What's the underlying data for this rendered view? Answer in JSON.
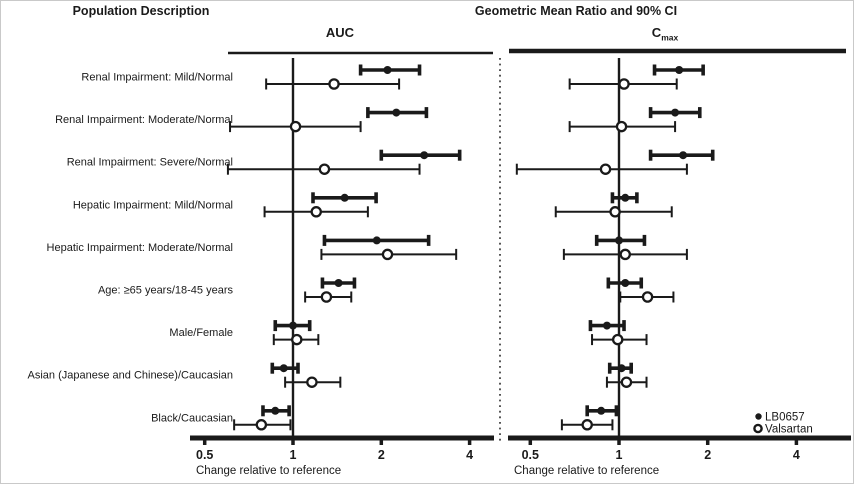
{
  "header": {
    "left_title": "Population Description",
    "right_title": "Geometric Mean Ratio and 90% CI"
  },
  "axis": {
    "scale": "log2",
    "range": [
      0.45,
      4.7
    ],
    "ticks": [
      0.5,
      1,
      2,
      4
    ],
    "tick_labels": [
      "0.5",
      "1",
      "2",
      "4"
    ],
    "xlabel": "Change relative to reference",
    "reference_value": 1
  },
  "legend": {
    "position": "bottom-right",
    "items": [
      {
        "marker": "filled-circle-icon",
        "label": "LB0657"
      },
      {
        "marker": "open-circle-icon",
        "label": "Valsartan"
      }
    ]
  },
  "colors": {
    "ink": "#1a1a1a",
    "separator": "#444444"
  },
  "chart_data": {
    "type": "forest",
    "title": "Geometric Mean Ratio and 90% CI",
    "xlabel": "Change relative to reference",
    "grid": false,
    "categories": [
      "Renal Impairment: Mild/Normal",
      "Renal Impairment: Moderate/Normal",
      "Renal Impairment: Severe/Normal",
      "Hepatic Impairment: Mild/Normal",
      "Hepatic Impairment: Moderate/Normal",
      "Age: ≥65 years/18-45 years",
      "Male/Female",
      "Asian (Japanese and Chinese)/Caucasian",
      "Black/Caucasian"
    ],
    "panels": [
      {
        "title": "AUC",
        "title_sub": "",
        "series": [
          {
            "name": "LB0657",
            "marker": "filled-circle",
            "values": [
              {
                "est": 2.1,
                "lo": 1.7,
                "hi": 2.7
              },
              {
                "est": 2.25,
                "lo": 1.8,
                "hi": 2.85
              },
              {
                "est": 2.8,
                "lo": 2.0,
                "hi": 3.7
              },
              {
                "est": 1.5,
                "lo": 1.17,
                "hi": 1.92
              },
              {
                "est": 1.93,
                "lo": 1.28,
                "hi": 2.9
              },
              {
                "est": 1.43,
                "lo": 1.26,
                "hi": 1.62
              },
              {
                "est": 1.0,
                "lo": 0.87,
                "hi": 1.14
              },
              {
                "est": 0.93,
                "lo": 0.85,
                "hi": 1.04
              },
              {
                "est": 0.87,
                "lo": 0.79,
                "hi": 0.97
              }
            ]
          },
          {
            "name": "Valsartan",
            "marker": "open-circle",
            "values": [
              {
                "est": 1.38,
                "lo": 0.81,
                "hi": 2.3
              },
              {
                "est": 1.02,
                "lo": 0.61,
                "hi": 1.7
              },
              {
                "est": 1.28,
                "lo": 0.6,
                "hi": 2.7
              },
              {
                "est": 1.2,
                "lo": 0.8,
                "hi": 1.8
              },
              {
                "est": 2.1,
                "lo": 1.25,
                "hi": 3.6
              },
              {
                "est": 1.3,
                "lo": 1.1,
                "hi": 1.58
              },
              {
                "est": 1.03,
                "lo": 0.86,
                "hi": 1.22
              },
              {
                "est": 1.16,
                "lo": 0.94,
                "hi": 1.45
              },
              {
                "est": 0.78,
                "lo": 0.63,
                "hi": 0.98
              }
            ]
          }
        ]
      },
      {
        "title": "C",
        "title_sub": "max",
        "series": [
          {
            "name": "LB0657",
            "marker": "filled-circle",
            "values": [
              {
                "est": 1.6,
                "lo": 1.32,
                "hi": 1.93
              },
              {
                "est": 1.55,
                "lo": 1.28,
                "hi": 1.88
              },
              {
                "est": 1.65,
                "lo": 1.28,
                "hi": 2.08
              },
              {
                "est": 1.05,
                "lo": 0.95,
                "hi": 1.15
              },
              {
                "est": 1.0,
                "lo": 0.84,
                "hi": 1.22
              },
              {
                "est": 1.05,
                "lo": 0.92,
                "hi": 1.19
              },
              {
                "est": 0.91,
                "lo": 0.8,
                "hi": 1.04
              },
              {
                "est": 1.02,
                "lo": 0.93,
                "hi": 1.1
              },
              {
                "est": 0.87,
                "lo": 0.78,
                "hi": 0.98
              }
            ]
          },
          {
            "name": "Valsartan",
            "marker": "open-circle",
            "values": [
              {
                "est": 1.04,
                "lo": 0.68,
                "hi": 1.57
              },
              {
                "est": 1.02,
                "lo": 0.68,
                "hi": 1.55
              },
              {
                "est": 0.9,
                "lo": 0.45,
                "hi": 1.7
              },
              {
                "est": 0.97,
                "lo": 0.61,
                "hi": 1.51
              },
              {
                "est": 1.05,
                "lo": 0.65,
                "hi": 1.7
              },
              {
                "est": 1.25,
                "lo": 1.01,
                "hi": 1.53
              },
              {
                "est": 0.99,
                "lo": 0.81,
                "hi": 1.24
              },
              {
                "est": 1.06,
                "lo": 0.91,
                "hi": 1.24
              },
              {
                "est": 0.78,
                "lo": 0.64,
                "hi": 0.95
              }
            ]
          }
        ]
      }
    ]
  }
}
